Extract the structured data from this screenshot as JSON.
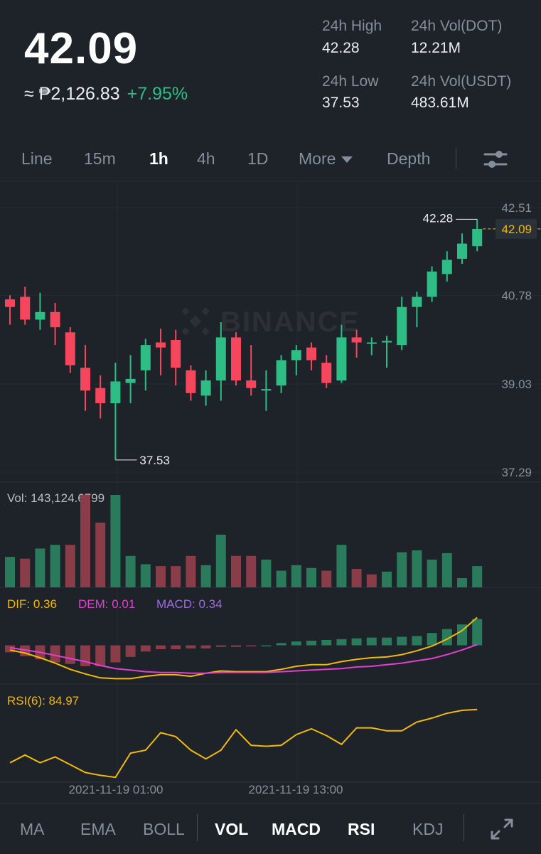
{
  "ticker": {
    "last_price": "42.09",
    "fiat_price": "≈ ₱2,126.83",
    "change_pct": "+7.95%"
  },
  "stats": [
    {
      "label": "24h High",
      "value": "42.28"
    },
    {
      "label": "24h Vol(DOT)",
      "value": "12.21M"
    },
    {
      "label": "24h Low",
      "value": "37.53"
    },
    {
      "label": "24h Vol(USDT)",
      "value": "483.61M"
    }
  ],
  "intervals": {
    "items": [
      "Line",
      "15m",
      "1h",
      "4h",
      "1D"
    ],
    "active": "1h",
    "more_label": "More",
    "depth_label": "Depth",
    "settings_icon": "sliders-icon"
  },
  "watermark": "BINANCE",
  "colors": {
    "up": "#2ebd85",
    "down": "#f6465d",
    "background": "#1e2329",
    "dif": "#f0b90b",
    "dem": "#e040d0",
    "macd": "#9f6ae0",
    "rsi": "#f0b90b"
  },
  "chart_data": [
    {
      "type": "candlestick",
      "y_axis_labels": [
        "42.51",
        "40.78",
        "39.03",
        "37.29"
      ],
      "ylim": [
        37.29,
        42.51
      ],
      "current_price_label": "42.09",
      "high_marker": "42.28",
      "low_marker": "37.53",
      "candles": [
        {
          "o": 40.7,
          "h": 40.78,
          "l": 40.2,
          "c": 40.55
        },
        {
          "o": 40.75,
          "h": 40.95,
          "l": 40.2,
          "c": 40.3
        },
        {
          "o": 40.3,
          "h": 40.83,
          "l": 40.1,
          "c": 40.45
        },
        {
          "o": 40.45,
          "h": 40.63,
          "l": 39.8,
          "c": 40.15
        },
        {
          "o": 40.05,
          "h": 40.15,
          "l": 39.25,
          "c": 39.4
        },
        {
          "o": 39.35,
          "h": 39.8,
          "l": 38.5,
          "c": 38.9
        },
        {
          "o": 38.95,
          "h": 39.2,
          "l": 38.35,
          "c": 38.65
        },
        {
          "o": 38.65,
          "h": 39.45,
          "l": 37.53,
          "c": 39.08
        },
        {
          "o": 39.05,
          "h": 39.6,
          "l": 38.65,
          "c": 39.13
        },
        {
          "o": 39.3,
          "h": 39.92,
          "l": 38.9,
          "c": 39.8
        },
        {
          "o": 39.85,
          "h": 40.12,
          "l": 39.2,
          "c": 39.75
        },
        {
          "o": 39.9,
          "h": 40.1,
          "l": 39.0,
          "c": 39.35
        },
        {
          "o": 39.3,
          "h": 39.4,
          "l": 38.7,
          "c": 38.85
        },
        {
          "o": 38.8,
          "h": 39.3,
          "l": 38.6,
          "c": 39.1
        },
        {
          "o": 39.1,
          "h": 40.25,
          "l": 38.7,
          "c": 39.95
        },
        {
          "o": 39.95,
          "h": 40.05,
          "l": 39.0,
          "c": 39.1
        },
        {
          "o": 39.1,
          "h": 39.8,
          "l": 38.8,
          "c": 38.95
        },
        {
          "o": 38.9,
          "h": 39.3,
          "l": 38.5,
          "c": 38.93
        },
        {
          "o": 39.0,
          "h": 39.6,
          "l": 38.85,
          "c": 39.5
        },
        {
          "o": 39.5,
          "h": 39.8,
          "l": 39.2,
          "c": 39.7
        },
        {
          "o": 39.75,
          "h": 39.85,
          "l": 39.3,
          "c": 39.5
        },
        {
          "o": 39.45,
          "h": 39.6,
          "l": 38.95,
          "c": 39.05
        },
        {
          "o": 39.1,
          "h": 40.2,
          "l": 39.05,
          "c": 39.95
        },
        {
          "o": 39.95,
          "h": 40.1,
          "l": 39.55,
          "c": 39.85
        },
        {
          "o": 39.85,
          "h": 39.95,
          "l": 39.6,
          "c": 39.85
        },
        {
          "o": 39.85,
          "h": 39.98,
          "l": 39.35,
          "c": 39.88
        },
        {
          "o": 39.8,
          "h": 40.75,
          "l": 39.7,
          "c": 40.55
        },
        {
          "o": 40.55,
          "h": 40.85,
          "l": 40.15,
          "c": 40.75
        },
        {
          "o": 40.75,
          "h": 41.35,
          "l": 40.65,
          "c": 41.25
        },
        {
          "o": 41.2,
          "h": 41.65,
          "l": 41.05,
          "c": 41.48
        },
        {
          "o": 41.5,
          "h": 42.0,
          "l": 41.4,
          "c": 41.8
        },
        {
          "o": 41.75,
          "h": 42.28,
          "l": 41.65,
          "c": 42.09
        }
      ]
    },
    {
      "type": "bar",
      "label": "Vol: 143,124.6799",
      "ylim": [
        0,
        1000
      ],
      "values": [
        330,
        310,
        420,
        460,
        460,
        1000,
        700,
        1000,
        340,
        250,
        230,
        230,
        340,
        240,
        570,
        340,
        340,
        300,
        180,
        240,
        210,
        180,
        460,
        200,
        140,
        170,
        380,
        400,
        300,
        370,
        100,
        230
      ],
      "up": [
        true,
        false,
        true,
        true,
        false,
        false,
        false,
        true,
        true,
        true,
        false,
        false,
        false,
        true,
        true,
        false,
        false,
        true,
        true,
        true,
        true,
        false,
        true,
        false,
        false,
        true,
        true,
        true,
        true,
        true,
        true,
        true
      ]
    },
    {
      "type": "line",
      "labels": [
        {
          "name": "DIF",
          "text": "DIF: 0.36"
        },
        {
          "name": "DEM",
          "text": "DEM: 0.01"
        },
        {
          "name": "MACD",
          "text": "MACD: 0.34"
        }
      ],
      "ylim": [
        -0.5,
        0.4
      ],
      "macd": [
        -0.09,
        -0.14,
        -0.18,
        -0.22,
        -0.24,
        -0.27,
        -0.27,
        -0.22,
        -0.15,
        -0.08,
        -0.05,
        -0.05,
        -0.04,
        -0.04,
        -0.02,
        -0.02,
        -0.01,
        0.0,
        0.03,
        0.05,
        0.06,
        0.07,
        0.08,
        0.09,
        0.1,
        0.1,
        0.11,
        0.12,
        0.16,
        0.21,
        0.27,
        0.34
      ],
      "dif": [
        -0.06,
        -0.1,
        -0.16,
        -0.23,
        -0.31,
        -0.37,
        -0.42,
        -0.43,
        -0.43,
        -0.4,
        -0.38,
        -0.38,
        -0.4,
        -0.36,
        -0.33,
        -0.34,
        -0.34,
        -0.34,
        -0.31,
        -0.27,
        -0.25,
        -0.25,
        -0.21,
        -0.18,
        -0.16,
        -0.15,
        -0.12,
        -0.07,
        -0.01,
        0.08,
        0.19,
        0.36
      ],
      "dem": [
        -0.03,
        -0.06,
        -0.09,
        -0.13,
        -0.17,
        -0.21,
        -0.26,
        -0.3,
        -0.32,
        -0.34,
        -0.35,
        -0.35,
        -0.36,
        -0.36,
        -0.35,
        -0.35,
        -0.35,
        -0.35,
        -0.34,
        -0.33,
        -0.32,
        -0.31,
        -0.3,
        -0.28,
        -0.27,
        -0.25,
        -0.23,
        -0.2,
        -0.17,
        -0.12,
        -0.06,
        0.01
      ]
    },
    {
      "type": "line",
      "label": "RSI(6): 84.97",
      "ylim": [
        10,
        95
      ],
      "values": [
        30,
        38,
        30,
        36,
        28,
        20,
        17,
        15,
        40,
        43,
        61,
        57,
        43,
        34,
        43,
        64,
        48,
        47,
        48,
        59,
        65,
        58,
        49,
        66,
        66,
        63,
        63,
        72,
        76,
        81,
        84,
        84.97
      ],
      "x_axis_labels": [
        "2021-11-19 01:00",
        "2021-11-19 13:00"
      ]
    }
  ],
  "indicators": {
    "main": [
      "MA",
      "EMA",
      "BOLL"
    ],
    "sub": [
      "VOL",
      "MACD",
      "RSI",
      "KDJ"
    ],
    "active_sub": [
      "VOL",
      "MACD",
      "RSI"
    ],
    "fullscreen_icon": "expand-icon"
  }
}
